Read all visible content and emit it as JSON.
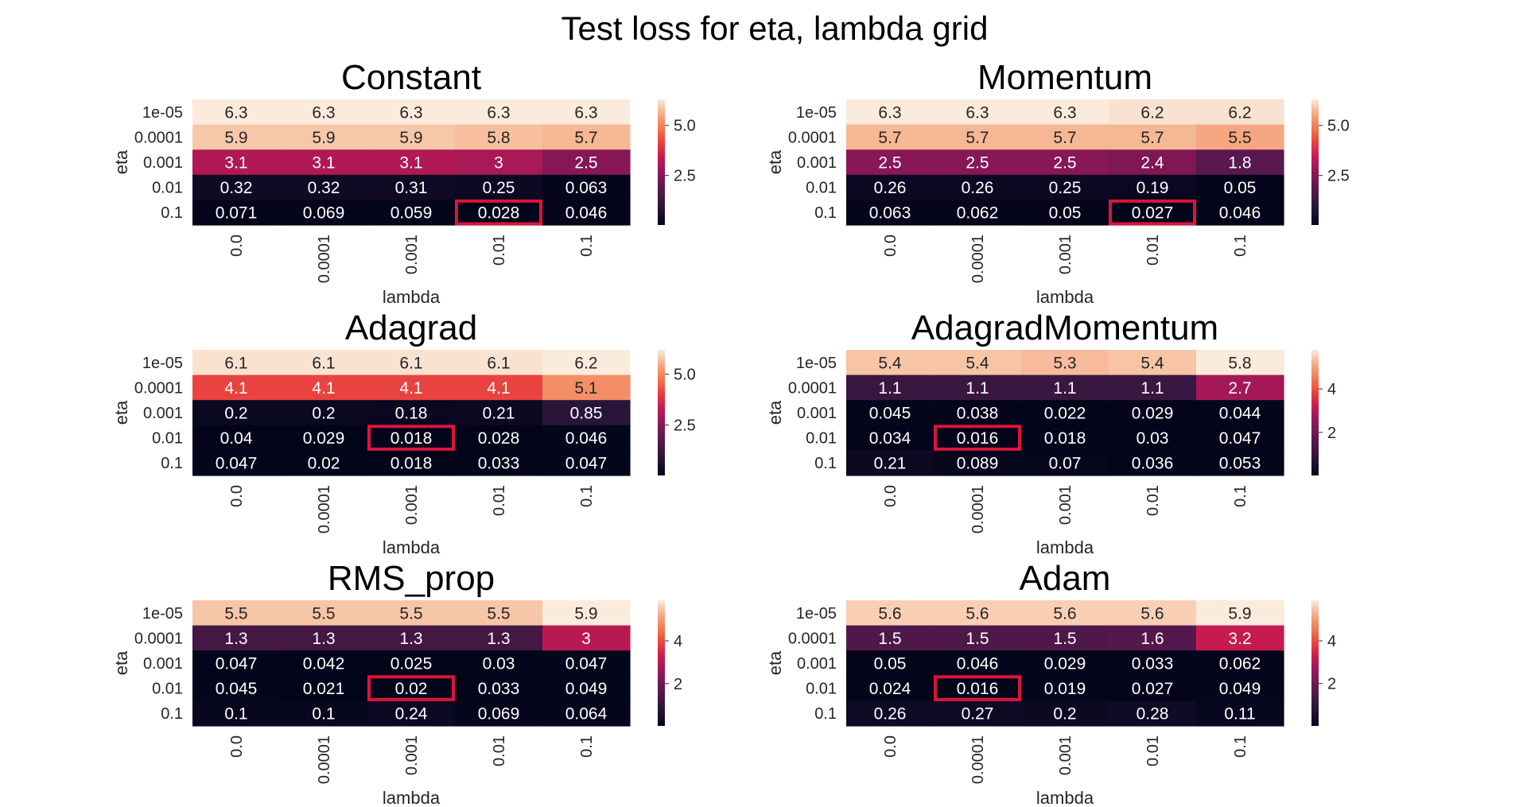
{
  "figure": {
    "title": "Test loss for eta, lambda grid"
  },
  "style": {
    "highlight_color": "#dc143c",
    "colormap": "rocket"
  },
  "chart_data": [
    {
      "type": "heatmap",
      "title": "Constant",
      "xlabel": "lambda",
      "ylabel": "eta",
      "x_ticks": [
        "0.0",
        "0.0001",
        "0.001",
        "0.01",
        "0.1"
      ],
      "y_ticks": [
        "1e-05",
        "0.0001",
        "0.001",
        "0.01",
        "0.1"
      ],
      "values": [
        [
          6.3,
          6.3,
          6.3,
          6.3,
          6.3
        ],
        [
          5.9,
          5.9,
          5.9,
          5.8,
          5.7
        ],
        [
          3.1,
          3.1,
          3.1,
          3,
          2.5
        ],
        [
          0.32,
          0.32,
          0.31,
          0.25,
          0.063
        ],
        [
          0.071,
          0.069,
          0.059,
          0.028,
          0.046
        ]
      ],
      "annotations": [
        [
          "6.3",
          "6.3",
          "6.3",
          "6.3",
          "6.3"
        ],
        [
          "5.9",
          "5.9",
          "5.9",
          "5.8",
          "5.7"
        ],
        [
          "3.1",
          "3.1",
          "3.1",
          "3",
          "2.5"
        ],
        [
          "0.32",
          "0.32",
          "0.31",
          "0.25",
          "0.063"
        ],
        [
          "0.071",
          "0.069",
          "0.059",
          "0.028",
          "0.046"
        ]
      ],
      "colorbar": {
        "ticks": [
          2.5,
          5.0
        ],
        "tick_labels": [
          "2.5",
          "5.0"
        ]
      },
      "highlight": {
        "row": 4,
        "col": 3
      }
    },
    {
      "type": "heatmap",
      "title": "Momentum",
      "xlabel": "lambda",
      "ylabel": "eta",
      "x_ticks": [
        "0.0",
        "0.0001",
        "0.001",
        "0.01",
        "0.1"
      ],
      "y_ticks": [
        "1e-05",
        "0.0001",
        "0.001",
        "0.01",
        "0.1"
      ],
      "values": [
        [
          6.3,
          6.3,
          6.3,
          6.2,
          6.2
        ],
        [
          5.7,
          5.7,
          5.7,
          5.7,
          5.5
        ],
        [
          2.5,
          2.5,
          2.5,
          2.4,
          1.8
        ],
        [
          0.26,
          0.26,
          0.25,
          0.19,
          0.05
        ],
        [
          0.063,
          0.062,
          0.05,
          0.027,
          0.046
        ]
      ],
      "annotations": [
        [
          "6.3",
          "6.3",
          "6.3",
          "6.2",
          "6.2"
        ],
        [
          "5.7",
          "5.7",
          "5.7",
          "5.7",
          "5.5"
        ],
        [
          "2.5",
          "2.5",
          "2.5",
          "2.4",
          "1.8"
        ],
        [
          "0.26",
          "0.26",
          "0.25",
          "0.19",
          "0.05"
        ],
        [
          "0.063",
          "0.062",
          "0.05",
          "0.027",
          "0.046"
        ]
      ],
      "colorbar": {
        "ticks": [
          2.5,
          5.0
        ],
        "tick_labels": [
          "2.5",
          "5.0"
        ]
      },
      "highlight": {
        "row": 4,
        "col": 3
      }
    },
    {
      "type": "heatmap",
      "title": "Adagrad",
      "xlabel": "lambda",
      "ylabel": "eta",
      "x_ticks": [
        "0.0",
        "0.0001",
        "0.001",
        "0.01",
        "0.1"
      ],
      "y_ticks": [
        "1e-05",
        "0.0001",
        "0.001",
        "0.01",
        "0.1"
      ],
      "values": [
        [
          6.1,
          6.1,
          6.1,
          6.1,
          6.2
        ],
        [
          4.1,
          4.1,
          4.1,
          4.1,
          5.1
        ],
        [
          0.2,
          0.2,
          0.18,
          0.21,
          0.85
        ],
        [
          0.04,
          0.029,
          0.018,
          0.028,
          0.046
        ],
        [
          0.047,
          0.02,
          0.018,
          0.033,
          0.047
        ]
      ],
      "annotations": [
        [
          "6.1",
          "6.1",
          "6.1",
          "6.1",
          "6.2"
        ],
        [
          "4.1",
          "4.1",
          "4.1",
          "4.1",
          "5.1"
        ],
        [
          "0.2",
          "0.2",
          "0.18",
          "0.21",
          "0.85"
        ],
        [
          "0.04",
          "0.029",
          "0.018",
          "0.028",
          "0.046"
        ],
        [
          "0.047",
          "0.02",
          "0.018",
          "0.033",
          "0.047"
        ]
      ],
      "colorbar": {
        "ticks": [
          2.5,
          5.0
        ],
        "tick_labels": [
          "2.5",
          "5.0"
        ]
      },
      "highlight": {
        "row": 3,
        "col": 2
      }
    },
    {
      "type": "heatmap",
      "title": "AdagradMomentum",
      "xlabel": "lambda",
      "ylabel": "eta",
      "x_ticks": [
        "0.0",
        "0.0001",
        "0.001",
        "0.01",
        "0.1"
      ],
      "y_ticks": [
        "1e-05",
        "0.0001",
        "0.001",
        "0.01",
        "0.1"
      ],
      "values": [
        [
          5.4,
          5.4,
          5.3,
          5.4,
          5.8
        ],
        [
          1.1,
          1.1,
          1.1,
          1.1,
          2.7
        ],
        [
          0.045,
          0.038,
          0.022,
          0.029,
          0.044
        ],
        [
          0.034,
          0.016,
          0.018,
          0.03,
          0.047
        ],
        [
          0.21,
          0.089,
          0.07,
          0.036,
          0.053
        ]
      ],
      "annotations": [
        [
          "5.4",
          "5.4",
          "5.3",
          "5.4",
          "5.8"
        ],
        [
          "1.1",
          "1.1",
          "1.1",
          "1.1",
          "2.7"
        ],
        [
          "0.045",
          "0.038",
          "0.022",
          "0.029",
          "0.044"
        ],
        [
          "0.034",
          "0.016",
          "0.018",
          "0.03",
          "0.047"
        ],
        [
          "0.21",
          "0.089",
          "0.07",
          "0.036",
          "0.053"
        ]
      ],
      "colorbar": {
        "ticks": [
          2,
          4
        ],
        "tick_labels": [
          "2",
          "4"
        ]
      },
      "highlight": {
        "row": 3,
        "col": 1
      }
    },
    {
      "type": "heatmap",
      "title": "RMS_prop",
      "xlabel": "lambda",
      "ylabel": "eta",
      "x_ticks": [
        "0.0",
        "0.0001",
        "0.001",
        "0.01",
        "0.1"
      ],
      "y_ticks": [
        "1e-05",
        "0.0001",
        "0.001",
        "0.01",
        "0.1"
      ],
      "values": [
        [
          5.5,
          5.5,
          5.5,
          5.5,
          5.9
        ],
        [
          1.3,
          1.3,
          1.3,
          1.3,
          3
        ],
        [
          0.047,
          0.042,
          0.025,
          0.03,
          0.047
        ],
        [
          0.045,
          0.021,
          0.02,
          0.033,
          0.049
        ],
        [
          0.1,
          0.1,
          0.24,
          0.069,
          0.064
        ]
      ],
      "annotations": [
        [
          "5.5",
          "5.5",
          "5.5",
          "5.5",
          "5.9"
        ],
        [
          "1.3",
          "1.3",
          "1.3",
          "1.3",
          "3"
        ],
        [
          "0.047",
          "0.042",
          "0.025",
          "0.03",
          "0.047"
        ],
        [
          "0.045",
          "0.021",
          "0.02",
          "0.033",
          "0.049"
        ],
        [
          "0.1",
          "0.1",
          "0.24",
          "0.069",
          "0.064"
        ]
      ],
      "colorbar": {
        "ticks": [
          2,
          4
        ],
        "tick_labels": [
          "2",
          "4"
        ]
      },
      "highlight": {
        "row": 3,
        "col": 2
      }
    },
    {
      "type": "heatmap",
      "title": "Adam",
      "xlabel": "lambda",
      "ylabel": "eta",
      "x_ticks": [
        "0.0",
        "0.0001",
        "0.001",
        "0.01",
        "0.1"
      ],
      "y_ticks": [
        "1e-05",
        "0.0001",
        "0.001",
        "0.01",
        "0.1"
      ],
      "values": [
        [
          5.6,
          5.6,
          5.6,
          5.6,
          5.9
        ],
        [
          1.5,
          1.5,
          1.5,
          1.6,
          3.2
        ],
        [
          0.05,
          0.046,
          0.029,
          0.033,
          0.062
        ],
        [
          0.024,
          0.016,
          0.019,
          0.027,
          0.049
        ],
        [
          0.26,
          0.27,
          0.2,
          0.28,
          0.11
        ]
      ],
      "annotations": [
        [
          "5.6",
          "5.6",
          "5.6",
          "5.6",
          "5.9"
        ],
        [
          "1.5",
          "1.5",
          "1.5",
          "1.6",
          "3.2"
        ],
        [
          "0.05",
          "0.046",
          "0.029",
          "0.033",
          "0.062"
        ],
        [
          "0.024",
          "0.016",
          "0.019",
          "0.027",
          "0.049"
        ],
        [
          "0.26",
          "0.27",
          "0.2",
          "0.28",
          "0.11"
        ]
      ],
      "colorbar": {
        "ticks": [
          2,
          4
        ],
        "tick_labels": [
          "2",
          "4"
        ]
      },
      "highlight": {
        "row": 3,
        "col": 1
      }
    }
  ]
}
